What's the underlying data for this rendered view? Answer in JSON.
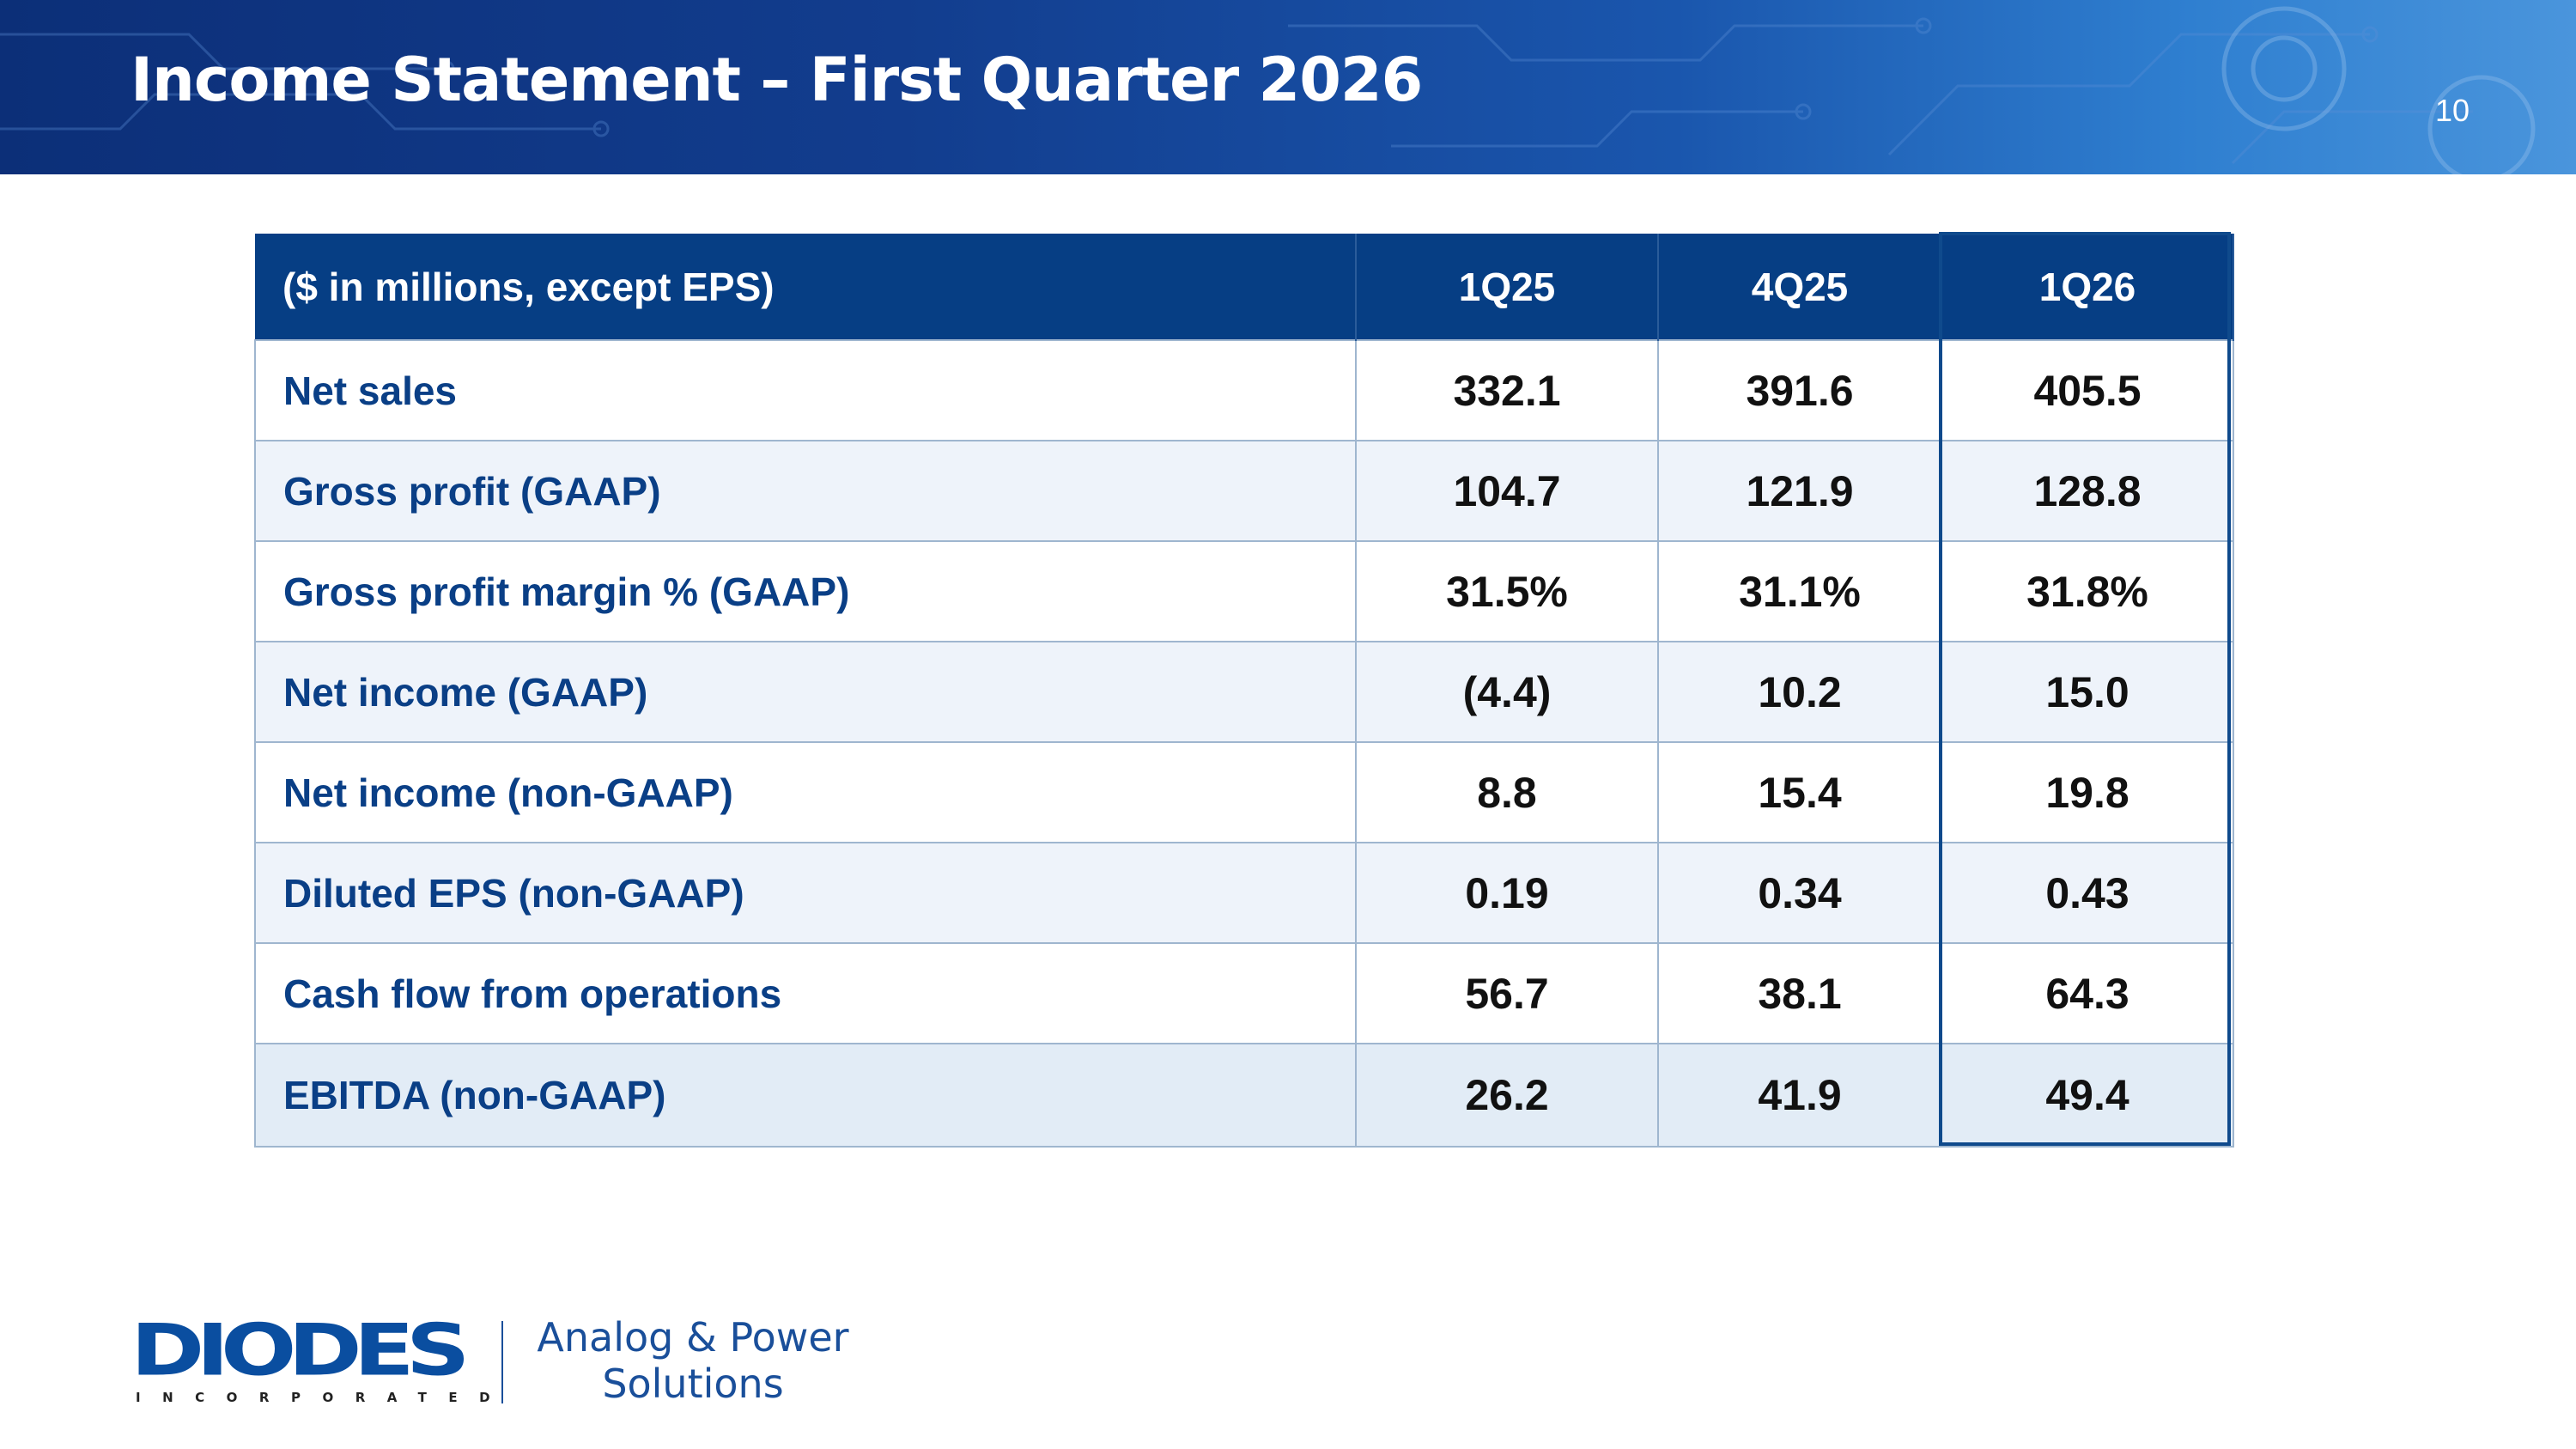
{
  "slide": {
    "title": "Income Statement – First Quarter 2026",
    "page_number": "10"
  },
  "table": {
    "header": {
      "label": "($ in millions, except EPS)",
      "columns": [
        "1Q25",
        "4Q25",
        "1Q26"
      ]
    },
    "rows": [
      {
        "label": "Net sales",
        "values": [
          "332.1",
          "391.6",
          "405.5"
        ]
      },
      {
        "label": "Gross profit (GAAP)",
        "values": [
          "104.7",
          "121.9",
          "128.8"
        ]
      },
      {
        "label": "Gross profit margin % (GAAP)",
        "values": [
          "31.5%",
          "31.1%",
          "31.8%"
        ]
      },
      {
        "label": "Net income (GAAP)",
        "values": [
          "(4.4)",
          "10.2",
          "15.0"
        ]
      },
      {
        "label": "Net income (non-GAAP)",
        "values": [
          "8.8",
          "15.4",
          "19.8"
        ]
      },
      {
        "label": "Diluted EPS (non-GAAP)",
        "values": [
          "0.19",
          "0.34",
          "0.43"
        ]
      },
      {
        "label": "Cash flow from operations",
        "values": [
          "56.7",
          "38.1",
          "64.3"
        ]
      },
      {
        "label": "EBITDA (non-GAAP)",
        "values": [
          "26.2",
          "41.9",
          "49.4"
        ]
      }
    ]
  },
  "footer": {
    "logo_text": "DIODES",
    "logo_subtext": "INCORPORATED",
    "tagline_line1": "Analog & Power",
    "tagline_line2": "Solutions"
  },
  "colors": {
    "header_blue": "#063e84",
    "label_blue": "#0a3f86",
    "logo_blue": "#0a4ea0"
  }
}
